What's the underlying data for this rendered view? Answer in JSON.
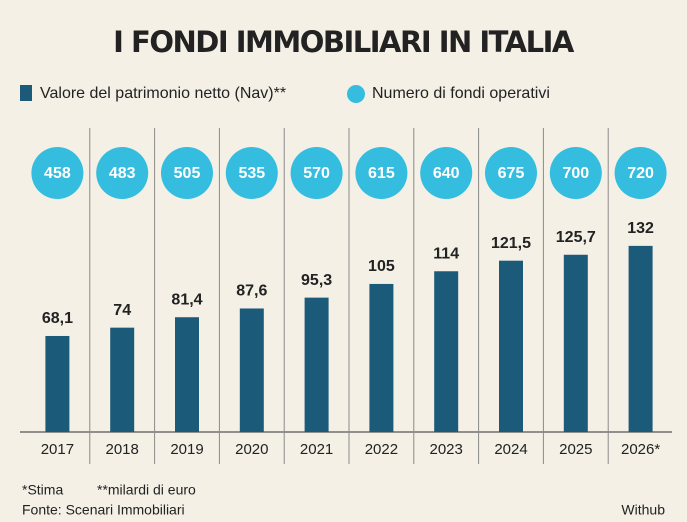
{
  "chart_data": {
    "type": "bar",
    "title": "I FONDI IMMOBILIARI IN ITALIA",
    "categories": [
      "2017",
      "2018",
      "2019",
      "2020",
      "2021",
      "2022",
      "2023",
      "2024",
      "2025",
      "2026*"
    ],
    "series": [
      {
        "name": "Valore del patrimonio netto (Nav)**",
        "color": "#1b5a78",
        "values": [
          68.1,
          74,
          81.4,
          87.6,
          95.3,
          105,
          114,
          121.5,
          125.7,
          132
        ],
        "value_labels": [
          "68,1",
          "74",
          "81,4",
          "87,6",
          "95,3",
          "105",
          "114",
          "121,5",
          "125,7",
          "132"
        ]
      },
      {
        "name": "Numero di fondi operativi",
        "color": "#35bde0",
        "values": [
          458,
          483,
          505,
          535,
          570,
          615,
          640,
          675,
          700,
          720
        ]
      }
    ],
    "notes": [
      "*Stima",
      "**milardi di euro"
    ],
    "source": "Fonte: Scenari Immobiliari",
    "credit": "Withub"
  }
}
